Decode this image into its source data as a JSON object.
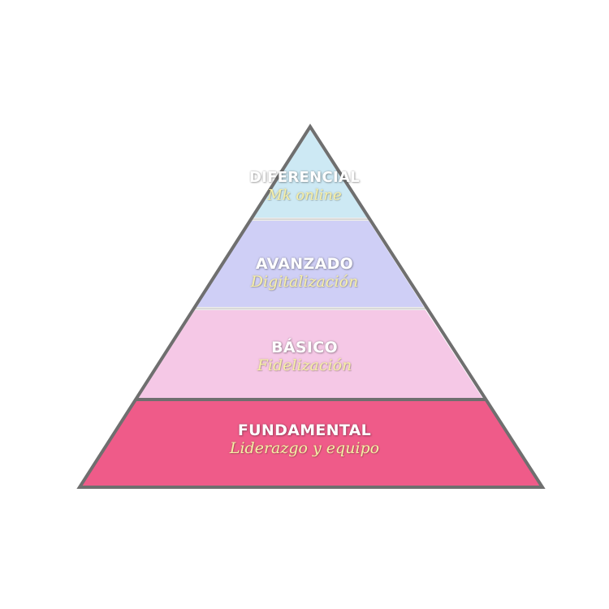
{
  "pyramid": {
    "tiers": [
      {
        "title": "DIFERENCIAL",
        "subtitle": "Mk online",
        "fill": "#cde9f4"
      },
      {
        "title": "AVANZADO",
        "subtitle": "Digitalización",
        "fill": "#cfcff6"
      },
      {
        "title": "BÁSICO",
        "subtitle": "Fidelización",
        "fill": "#f5c8e6"
      },
      {
        "title": "FUNDAMENTAL",
        "subtitle": "Liderazgo y equipo",
        "fill": "#ef5b89"
      }
    ],
    "outline_color": "#6f6f6f",
    "separator_color": "#d9d9d9"
  }
}
